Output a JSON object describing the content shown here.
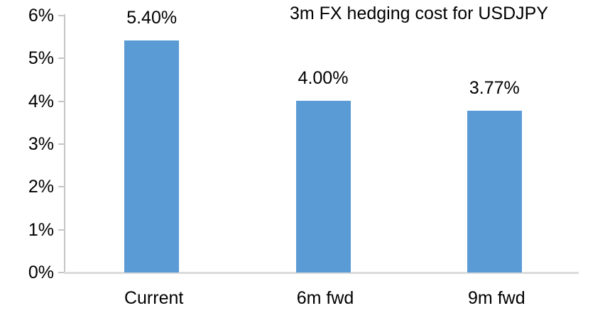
{
  "chart_data": {
    "type": "bar",
    "title": "3m FX hedging cost for USDJPY",
    "categories": [
      "Current",
      "6m fwd",
      "9m fwd"
    ],
    "values": [
      5.4,
      4.0,
      3.77
    ],
    "data_labels": [
      "5.40%",
      "4.00%",
      "3.77%"
    ],
    "xlabel": "",
    "ylabel": "",
    "ylim": [
      0,
      6
    ],
    "y_ticks": [
      {
        "label": "0%",
        "value": 0
      },
      {
        "label": "1%",
        "value": 1
      },
      {
        "label": "2%",
        "value": 2
      },
      {
        "label": "3%",
        "value": 3
      },
      {
        "label": "4%",
        "value": 4
      },
      {
        "label": "5%",
        "value": 5
      },
      {
        "label": "6%",
        "value": 6
      }
    ],
    "grid": "off",
    "legend": "none",
    "colors": {
      "bar": "#5B9BD5",
      "axis": "#C6C6C6",
      "baseline": "#DCDCDC",
      "text": "#000000",
      "background": "#FFFFFF"
    }
  }
}
